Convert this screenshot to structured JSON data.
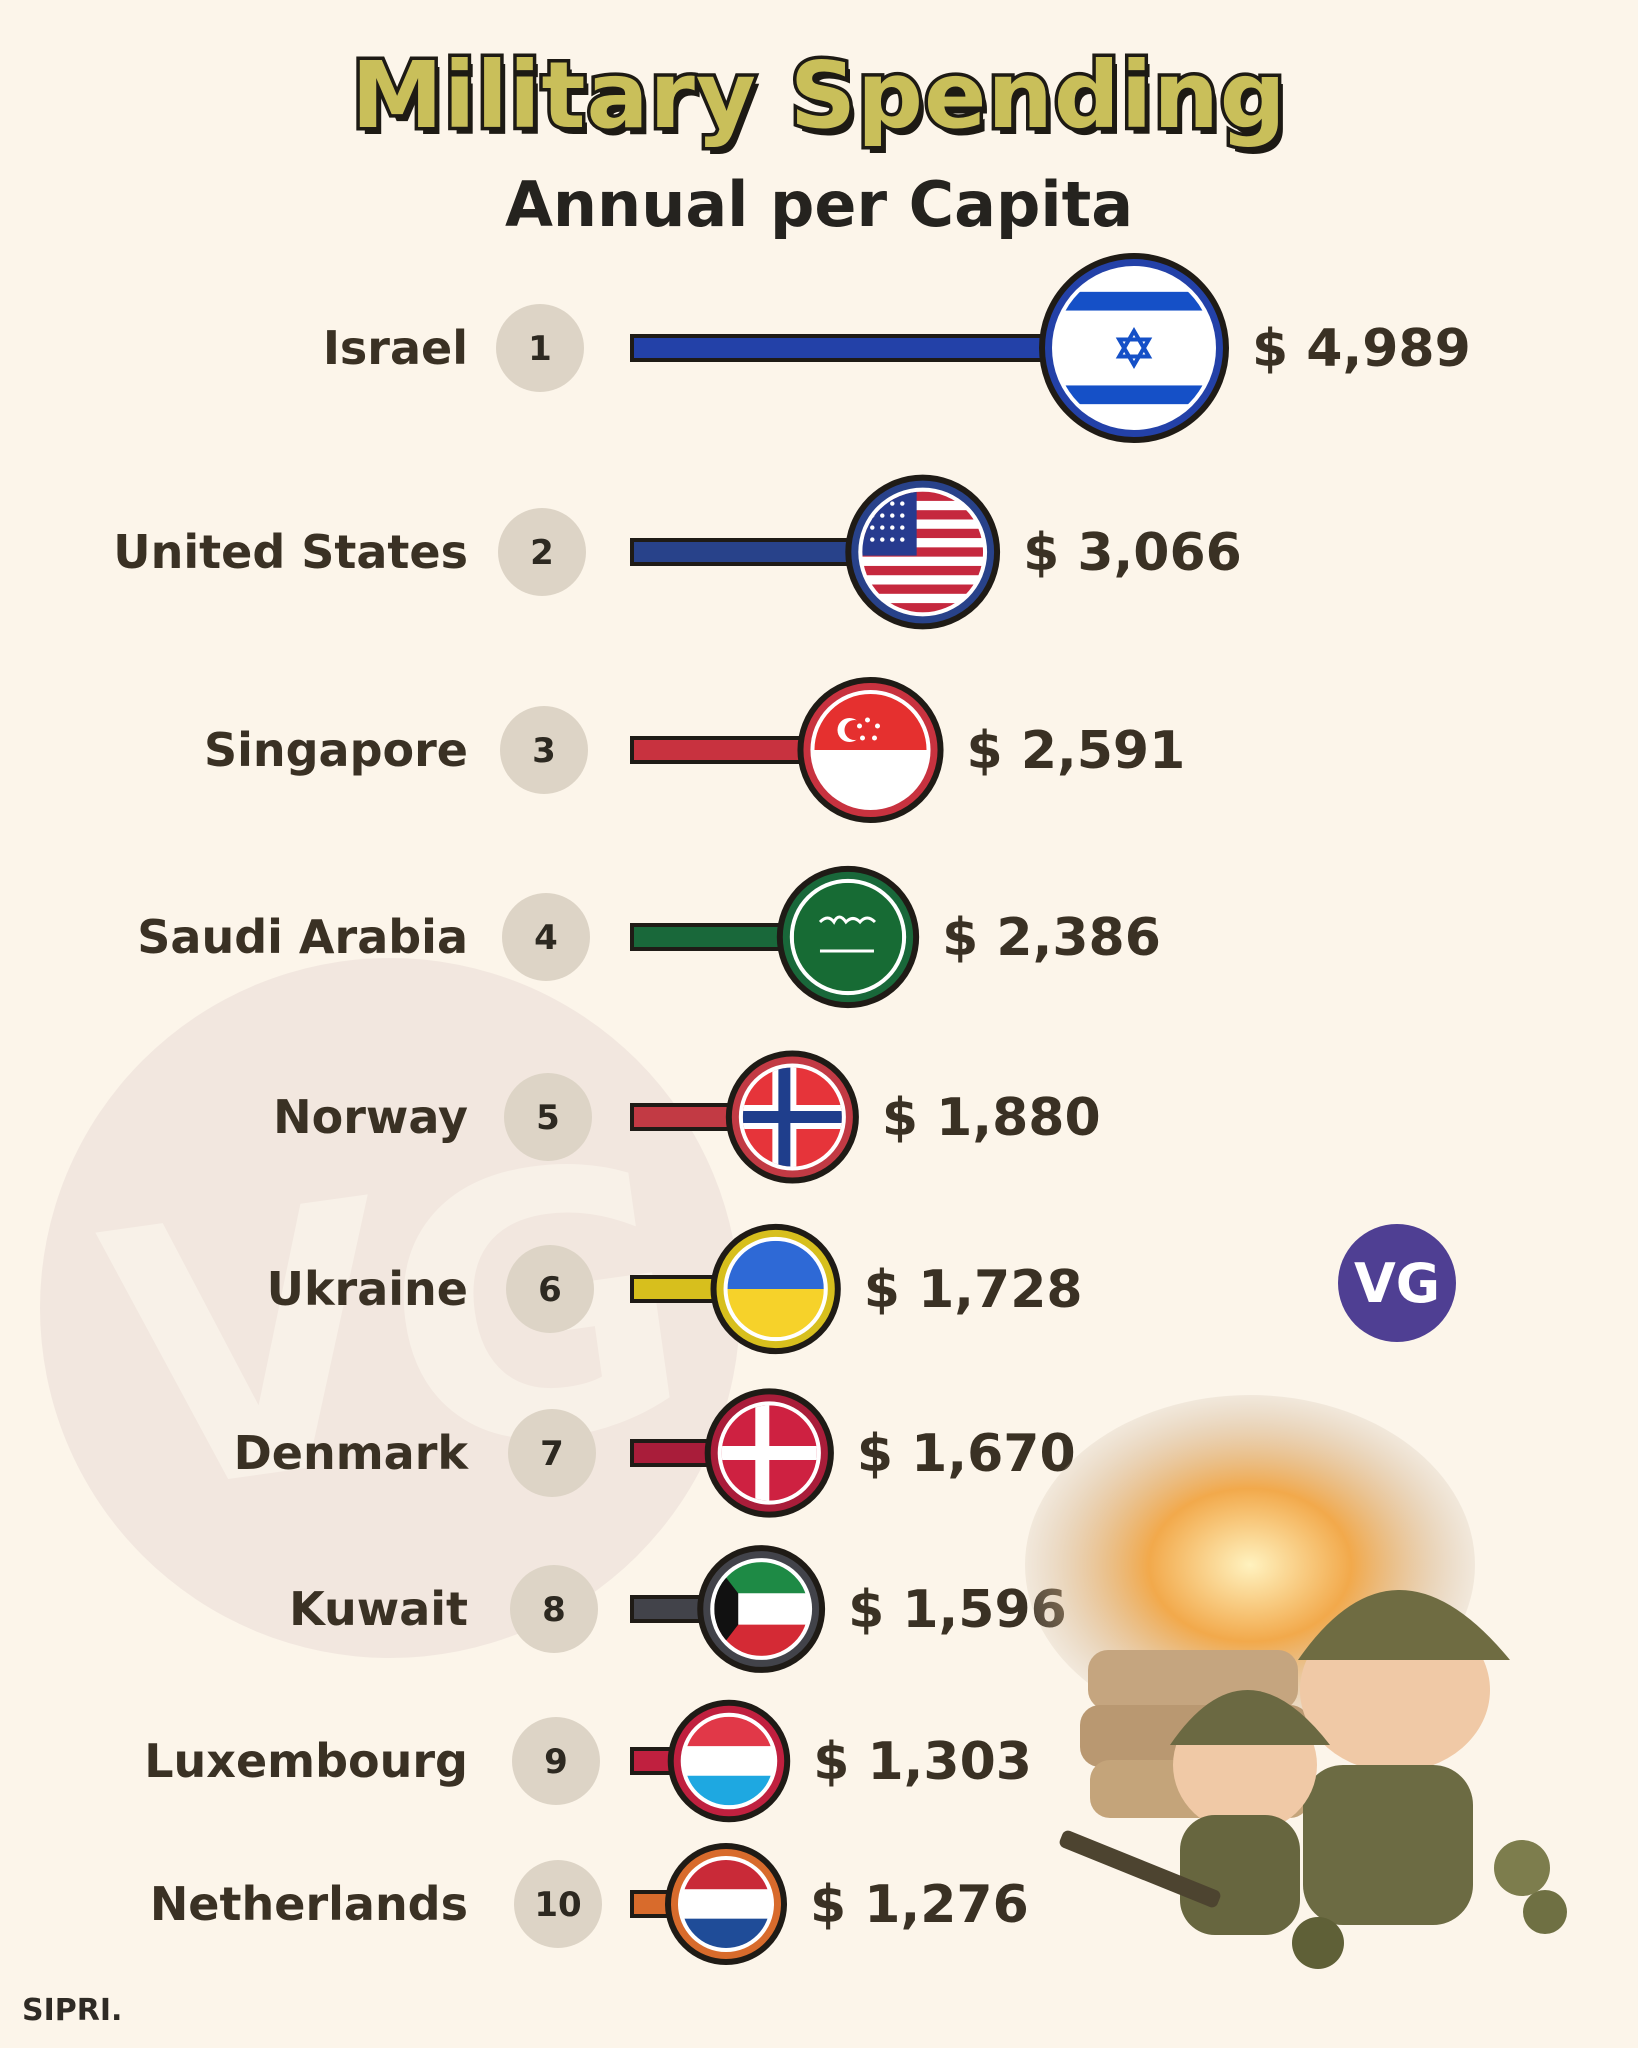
{
  "header": {
    "title": "Military Spending",
    "subtitle": "Annual per Capita"
  },
  "source": "SIPRI.",
  "watermark": {
    "text": "VG",
    "badge": "VG"
  },
  "chart_data": {
    "type": "bar",
    "title": "Military Spending",
    "subtitle": "Annual per Capita",
    "categories": [
      "Israel",
      "United States",
      "Singapore",
      "Saudi Arabia",
      "Norway",
      "Ukraine",
      "Denmark",
      "Kuwait",
      "Luxembourg",
      "Netherlands"
    ],
    "ranks": [
      "1",
      "2",
      "3",
      "4",
      "5",
      "6",
      "7",
      "8",
      "9",
      "10"
    ],
    "values": [
      4989,
      3066,
      2591,
      2386,
      1880,
      1728,
      1670,
      1596,
      1303,
      1276
    ],
    "value_labels": [
      "$ 4,989",
      "$ 3,066",
      "$ 2,591",
      "$ 2,386",
      "$ 1,880",
      "$ 1,728",
      "$ 1,670",
      "$ 1,596",
      "$ 1,303",
      "$ 1,276"
    ],
    "flags": [
      "israel-flag",
      "usa-flag",
      "singapore-flag",
      "saudi-arabia-flag",
      "norway-flag",
      "ukraine-flag",
      "denmark-flag",
      "kuwait-flag",
      "luxembourg-flag",
      "netherlands-flag"
    ],
    "colors": [
      "#2341a8",
      "#28428a",
      "#c8323f",
      "#19683a",
      "#c23a44",
      "#d7bf1d",
      "#a91d3a",
      "#42434a",
      "#c0203f",
      "#d86b2c"
    ]
  }
}
